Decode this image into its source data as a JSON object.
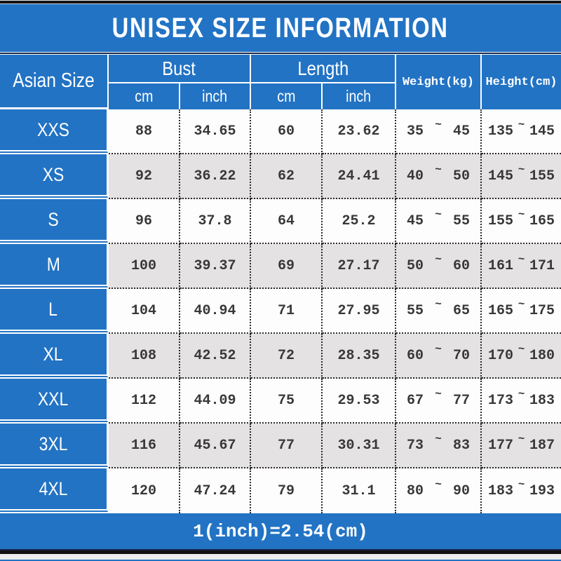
{
  "title": "UNISEX SIZE INFORMATION",
  "symbols": {
    "tilde": "~"
  },
  "colors": {
    "accent_blue": "#2273c4",
    "row_white": "#fdfdfd",
    "row_alt_gray": "#e4e2e3",
    "text_dark": "#383838",
    "header_text": "#ffffff"
  },
  "table": {
    "corner_header": "Asian Size",
    "group_headers": {
      "bust": "Bust",
      "length": "Length"
    },
    "unit_headers": {
      "bust_cm": "cm",
      "bust_inch": "inch",
      "length_cm": "cm",
      "length_inch": "inch"
    },
    "single_headers": {
      "weight": "Weight(kg)",
      "height": "Height(cm)"
    },
    "rows": [
      {
        "size": "XXS",
        "bust_cm": "88",
        "bust_inch": "34.65",
        "length_cm": "60",
        "length_inch": "23.62",
        "weight_low": "35",
        "weight_high": "45",
        "height_low": "135",
        "height_high": "145"
      },
      {
        "size": "XS",
        "bust_cm": "92",
        "bust_inch": "36.22",
        "length_cm": "62",
        "length_inch": "24.41",
        "weight_low": "40",
        "weight_high": "50",
        "height_low": "145",
        "height_high": "155"
      },
      {
        "size": "S",
        "bust_cm": "96",
        "bust_inch": "37.8",
        "length_cm": "64",
        "length_inch": "25.2",
        "weight_low": "45",
        "weight_high": "55",
        "height_low": "155",
        "height_high": "165"
      },
      {
        "size": "M",
        "bust_cm": "100",
        "bust_inch": "39.37",
        "length_cm": "69",
        "length_inch": "27.17",
        "weight_low": "50",
        "weight_high": "60",
        "height_low": "161",
        "height_high": "171"
      },
      {
        "size": "L",
        "bust_cm": "104",
        "bust_inch": "40.94",
        "length_cm": "71",
        "length_inch": "27.95",
        "weight_low": "55",
        "weight_high": "65",
        "height_low": "165",
        "height_high": "175"
      },
      {
        "size": "XL",
        "bust_cm": "108",
        "bust_inch": "42.52",
        "length_cm": "72",
        "length_inch": "28.35",
        "weight_low": "60",
        "weight_high": "70",
        "height_low": "170",
        "height_high": "180"
      },
      {
        "size": "XXL",
        "bust_cm": "112",
        "bust_inch": "44.09",
        "length_cm": "75",
        "length_inch": "29.53",
        "weight_low": "67",
        "weight_high": "77",
        "height_low": "173",
        "height_high": "183"
      },
      {
        "size": "3XL",
        "bust_cm": "116",
        "bust_inch": "45.67",
        "length_cm": "77",
        "length_inch": "30.31",
        "weight_low": "73",
        "weight_high": "83",
        "height_low": "177",
        "height_high": "187"
      },
      {
        "size": "4XL",
        "bust_cm": "120",
        "bust_inch": "47.24",
        "length_cm": "79",
        "length_inch": "31.1",
        "weight_low": "80",
        "weight_high": "90",
        "height_low": "183",
        "height_high": "193"
      }
    ]
  },
  "footer": {
    "note": "1(inch)=2.54(cm)"
  }
}
